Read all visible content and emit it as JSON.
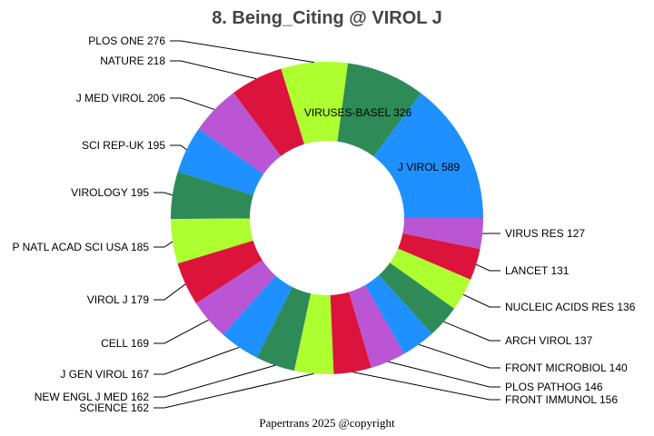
{
  "chart_data": {
    "type": "pie",
    "donut": true,
    "title": "8. Being_Citing @ VIROL J",
    "direction": "counterclockwise from 3 o'clock",
    "slices": [
      {
        "label": "J VIROL",
        "value": 589,
        "color": "#1E90FF"
      },
      {
        "label": "VIRUSES-BASEL",
        "value": 326,
        "color": "#2E8B57"
      },
      {
        "label": "PLOS ONE",
        "value": 276,
        "color": "#ADFF2F"
      },
      {
        "label": "NATURE",
        "value": 218,
        "color": "#DC143C"
      },
      {
        "label": "J MED VIROL",
        "value": 206,
        "color": "#BA55D3"
      },
      {
        "label": "SCI REP-UK",
        "value": 195,
        "color": "#1E90FF"
      },
      {
        "label": "VIROLOGY",
        "value": 195,
        "color": "#2E8B57"
      },
      {
        "label": "P NATL ACAD SCI USA",
        "value": 185,
        "color": "#ADFF2F"
      },
      {
        "label": "VIROL J",
        "value": 179,
        "color": "#DC143C"
      },
      {
        "label": "CELL",
        "value": 169,
        "color": "#BA55D3"
      },
      {
        "label": "J GEN VIROL",
        "value": 167,
        "color": "#1E90FF"
      },
      {
        "label": "NEW ENGL J MED",
        "value": 162,
        "color": "#2E8B57"
      },
      {
        "label": "SCIENCE",
        "value": 162,
        "color": "#ADFF2F"
      },
      {
        "label": "FRONT IMMUNOL",
        "value": 156,
        "color": "#DC143C"
      },
      {
        "label": "PLOS PATHOG",
        "value": 146,
        "color": "#BA55D3"
      },
      {
        "label": "FRONT MICROBIOL",
        "value": 140,
        "color": "#1E90FF"
      },
      {
        "label": "ARCH VIROL",
        "value": 137,
        "color": "#2E8B57"
      },
      {
        "label": "NUCLEIC ACIDS RES",
        "value": 136,
        "color": "#ADFF2F"
      },
      {
        "label": "LANCET",
        "value": 131,
        "color": "#DC143C"
      },
      {
        "label": "VIRUS RES",
        "value": 127,
        "color": "#BA55D3"
      }
    ]
  },
  "footer": "Papertrans 2025 @copyright"
}
